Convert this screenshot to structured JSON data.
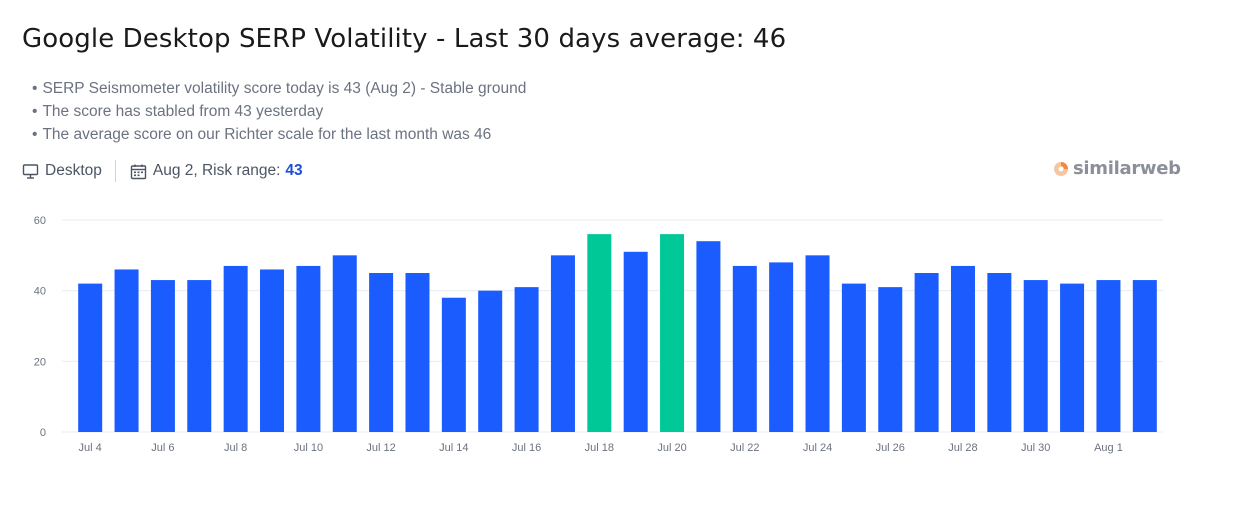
{
  "header": {
    "title": "Google Desktop SERP Volatility - Last 30 days average: 46"
  },
  "summary": [
    "SERP Seismometer volatility score today is 43 (Aug 2) - Stable ground",
    "The score has stabled from 43 yesterday",
    "The average score on our Richter scale for the last month was 46"
  ],
  "filters": {
    "device_label": "Desktop",
    "device_icon": "monitor-icon",
    "date_icon": "calendar-icon",
    "date_text": "Aug 2, Risk range:",
    "risk_value": "43"
  },
  "brand": {
    "name": "similarweb",
    "logo_icon": "similarweb-logo-icon"
  },
  "colors": {
    "bar_default": "#1b5cff",
    "bar_highlight": "#00c897",
    "gridline": "#e8ebf0",
    "risk_value": "#1d4ed8"
  },
  "chart_data": {
    "type": "bar",
    "title": "",
    "xlabel": "",
    "ylabel": "",
    "ylim": [
      0,
      60
    ],
    "y_ticks": [
      0,
      20,
      40,
      60
    ],
    "grid": true,
    "categories": [
      "Jul 4",
      "Jul 5",
      "Jul 6",
      "Jul 7",
      "Jul 8",
      "Jul 9",
      "Jul 10",
      "Jul 11",
      "Jul 12",
      "Jul 13",
      "Jul 14",
      "Jul 15",
      "Jul 16",
      "Jul 17",
      "Jul 18",
      "Jul 19",
      "Jul 20",
      "Jul 21",
      "Jul 22",
      "Jul 23",
      "Jul 24",
      "Jul 25",
      "Jul 26",
      "Jul 27",
      "Jul 28",
      "Jul 29",
      "Jul 30",
      "Jul 31",
      "Aug 1",
      "Aug 2"
    ],
    "x_tick_labels": [
      "Jul 4",
      "Jul 6",
      "Jul 8",
      "Jul 10",
      "Jul 12",
      "Jul 14",
      "Jul 16",
      "Jul 18",
      "Jul 20",
      "Jul 22",
      "Jul 24",
      "Jul 26",
      "Jul 28",
      "Jul 30",
      "Aug 1"
    ],
    "values": [
      42,
      46,
      43,
      43,
      47,
      46,
      47,
      50,
      45,
      45,
      38,
      40,
      41,
      50,
      56,
      51,
      56,
      54,
      47,
      48,
      50,
      42,
      41,
      45,
      47,
      45,
      43,
      42,
      43,
      43
    ],
    "highlighted": [
      "Jul 18",
      "Jul 20"
    ]
  }
}
